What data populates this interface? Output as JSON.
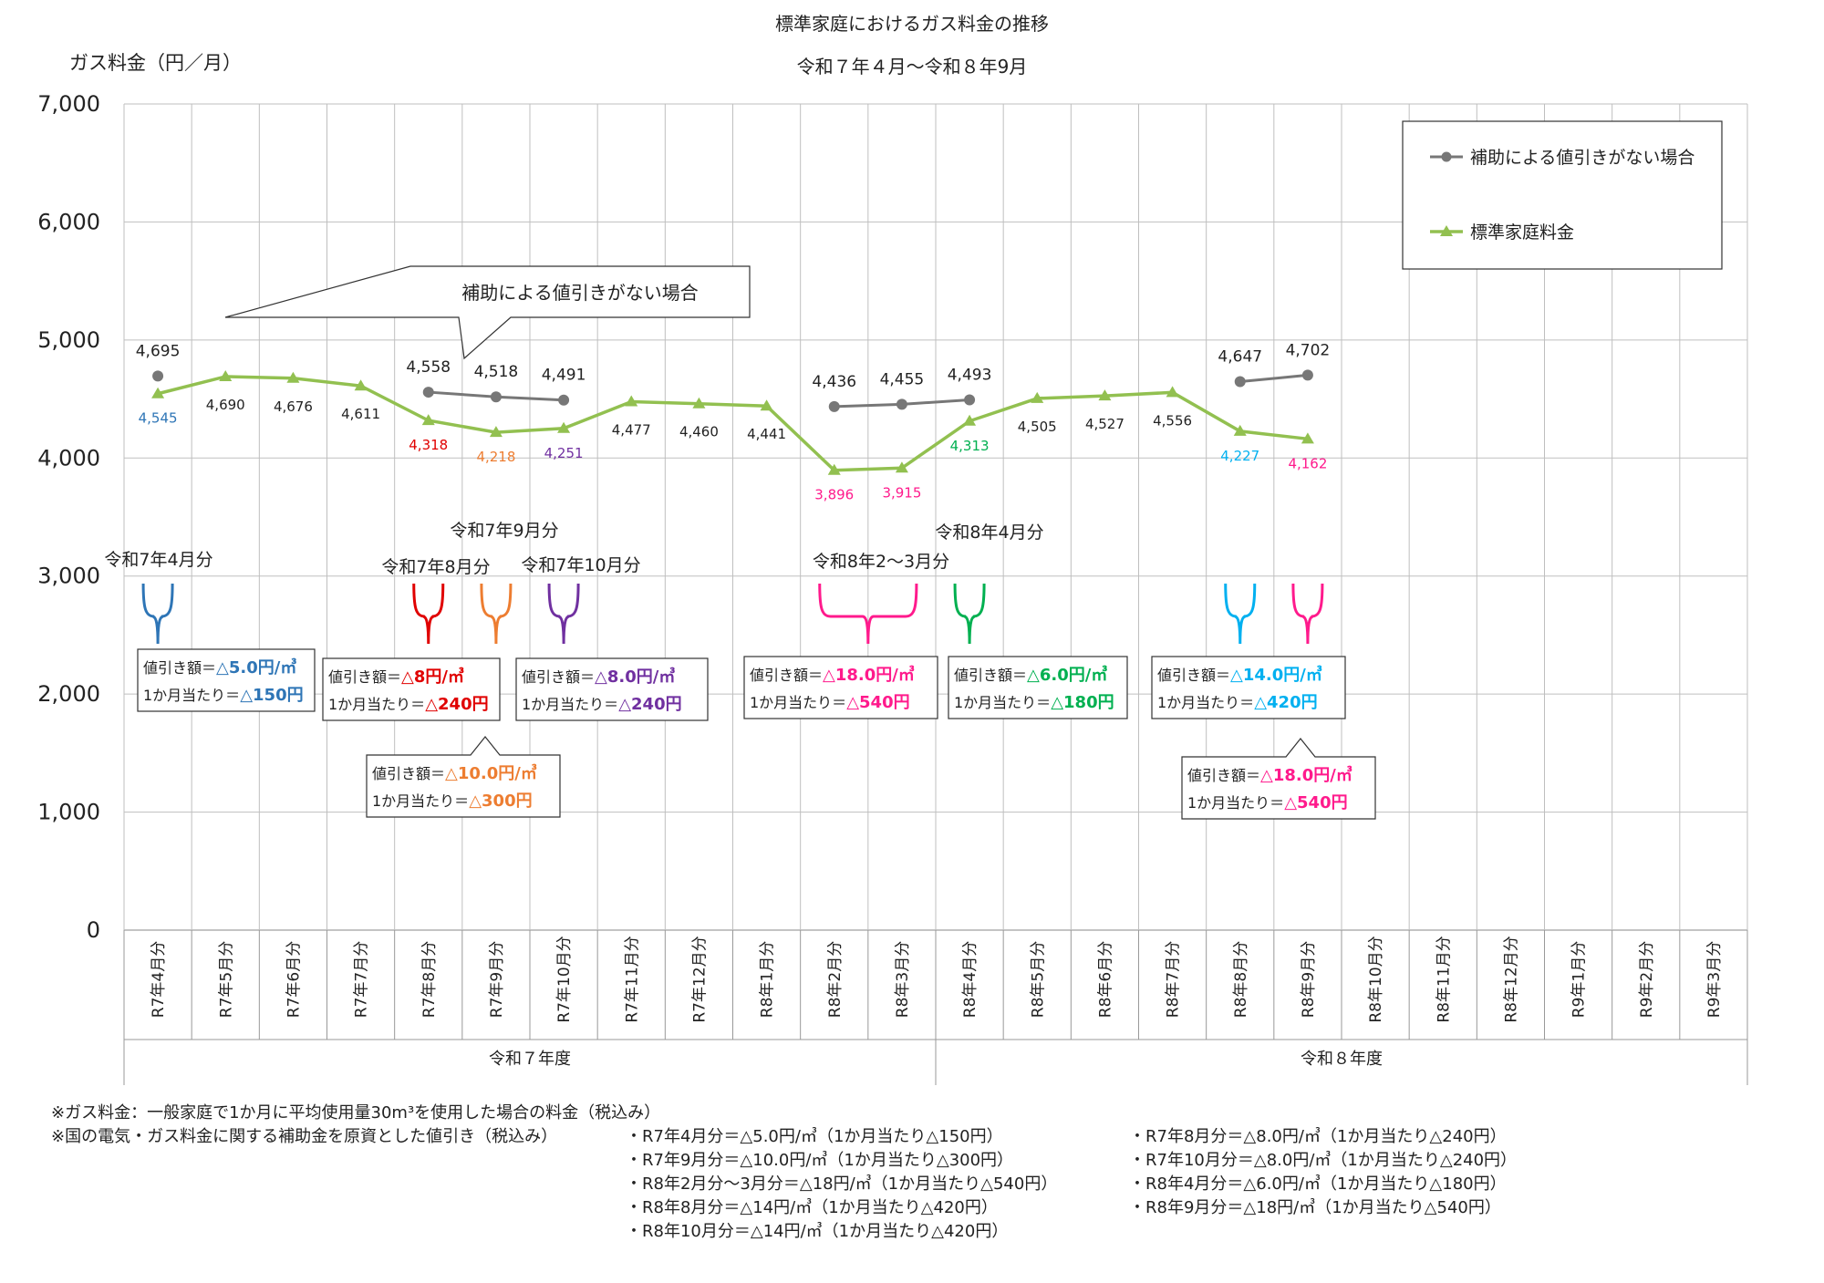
{
  "title_line1": "標準家庭におけるガス料金の推移",
  "title_line2": "令和７年４月～令和８年9月",
  "y_axis_label": "ガス料金（円／月）",
  "chart_data": {
    "type": "line",
    "ylim": [
      0,
      7000
    ],
    "y_ticks": [
      "0",
      "1,000",
      "2,000",
      "3,000",
      "4,000",
      "5,000",
      "6,000",
      "7,000"
    ],
    "y_tick_values": [
      0,
      1000,
      2000,
      3000,
      4000,
      5000,
      6000,
      7000
    ],
    "categories": [
      "R7年4月分",
      "R7年5月分",
      "R7年6月分",
      "R7年7月分",
      "R7年8月分",
      "R7年9月分",
      "R7年10月分",
      "R7年11月分",
      "R7年12月分",
      "R8年1月分",
      "R8年2月分",
      "R8年3月分",
      "R8年4月分",
      "R8年5月分",
      "R8年6月分",
      "R8年7月分",
      "R8年8月分",
      "R8年9月分",
      "R8年10月分",
      "R8年11月分",
      "R8年12月分",
      "R9年1月分",
      "R9年2月分",
      "R9年3月分"
    ],
    "fiscal_groups": [
      {
        "label": "令和７年度",
        "start": 0,
        "end": 11
      },
      {
        "label": "令和８年度",
        "start": 12,
        "end": 23
      }
    ],
    "grid": true,
    "legend_position": "top-right",
    "series": [
      {
        "name": "補助による値引きがない場合",
        "color": "#777777",
        "marker": "circle",
        "segments": [
          [
            0,
            0
          ],
          [
            4,
            6
          ],
          [
            10,
            12
          ],
          [
            16,
            17
          ]
        ],
        "values": [
          4695,
          null,
          null,
          null,
          4558,
          4518,
          4491,
          null,
          null,
          null,
          4436,
          4455,
          4493,
          null,
          null,
          null,
          4647,
          4702,
          null,
          null,
          null,
          null,
          null,
          null
        ],
        "labels": [
          "4,695",
          "",
          "",
          "",
          "4,558",
          "4,518",
          "4,491",
          "",
          "",
          "",
          "4,436",
          "4,455",
          "4,493",
          "",
          "",
          "",
          "4,647",
          "4,702",
          "",
          "",
          "",
          "",
          "",
          ""
        ]
      },
      {
        "name": "標準家庭料金",
        "color": "#92c050",
        "marker": "triangle",
        "values": [
          4545,
          4690,
          4676,
          4611,
          4318,
          4218,
          4251,
          4477,
          4460,
          4441,
          3896,
          3915,
          4313,
          4505,
          4527,
          4556,
          4227,
          4162,
          null,
          null,
          null,
          null,
          null,
          null
        ],
        "labels": [
          "4,545",
          "4,690",
          "4,676",
          "4,611",
          "4,318",
          "4,218",
          "4,251",
          "4,477",
          "4,460",
          "4,441",
          "3,896",
          "3,915",
          "4,313",
          "4,505",
          "4,527",
          "4,556",
          "4,227",
          "4,162",
          "",
          "",
          "",
          "",
          "",
          ""
        ],
        "label_colors": [
          "#2e75b6",
          "#222222",
          "#222222",
          "#222222",
          "#e00000",
          "#ed7d31",
          "#7030a0",
          "#222222",
          "#222222",
          "#222222",
          "#ff1a8c",
          "#ff1a8c",
          "#00b050",
          "#222222",
          "#222222",
          "#222222",
          "#00b0f0",
          "#ff1a8c",
          "",
          "",
          "",
          "",
          "",
          ""
        ]
      }
    ],
    "callout": "補助による値引きがない場合",
    "discount_periods": [
      {
        "label": "令和7年4月分",
        "color": "#2e75b6",
        "start": 0,
        "end": 0,
        "box": [
          "値引き額＝",
          "△5.0円/㎥",
          "1か月当たり＝",
          "△150円"
        ]
      },
      {
        "label": "令和7年8月分",
        "color": "#e00000",
        "start": 4,
        "end": 4,
        "box": [
          "値引き額＝",
          "△8円/㎥",
          "1か月当たり＝",
          "△240円"
        ]
      },
      {
        "label": "令和7年9月分",
        "color": "#ed7d31",
        "start": 5,
        "end": 5,
        "box": [
          "値引き額＝",
          "△10.0円/㎥",
          "1か月当たり＝",
          "△300円"
        ]
      },
      {
        "label": "令和7年10月分",
        "color": "#7030a0",
        "start": 6,
        "end": 6,
        "box": [
          "値引き額＝",
          "△8.0円/㎥",
          "1か月当たり＝",
          "△240円"
        ]
      },
      {
        "label": "令和8年2～3月分",
        "color": "#ff1a8c",
        "start": 10,
        "end": 11,
        "box": [
          "値引き額＝",
          "△18.0円/㎥",
          "1か月当たり＝",
          "△540円"
        ]
      },
      {
        "label": "令和8年4月分",
        "color": "#00b050",
        "start": 12,
        "end": 12,
        "box": [
          "値引き額＝",
          "△6.0円/㎥",
          "1か月当たり＝",
          "△180円"
        ]
      },
      {
        "label": "",
        "color": "#00b0f0",
        "start": 16,
        "end": 16,
        "box": [
          "値引き額＝",
          "△14.0円/㎥",
          "1か月当たり＝",
          "△420円"
        ]
      },
      {
        "label": "",
        "color": "#ff1a8c",
        "start": 17,
        "end": 17,
        "box": [
          "値引き額＝",
          "△18.0円/㎥",
          "1か月当たり＝",
          "△540円"
        ]
      }
    ]
  },
  "notes": {
    "line1": "※ガス料金：一般家庭で1か月に平均使用量30m³を使用した場合の料金（税込み）",
    "line2": "※国の電気・ガス料金に関する補助金を原資とした値引き（税込み）",
    "items": [
      "・R7年4月分＝△5.0円/㎥（1か月当たり△150円）",
      "・R7年8月分＝△8.0円/㎥（1か月当たり△240円）",
      "・R7年9月分＝△10.0円/㎥（1か月当たり△300円）",
      "・R7年10月分＝△8.0円/㎥（1か月当たり△240円）",
      "・R8年2月分～3月分＝△18円/㎥（1か月当たり△540円）",
      "・R8年4月分＝△6.0円/㎥（1か月当たり△180円）",
      "・R8年8月分＝△14円/㎥（1か月当たり△420円）",
      "・R8年9月分＝△18円/㎥（1か月当たり△540円）",
      "・R8年10月分＝△14円/㎥（1か月当たり△420円）"
    ]
  }
}
